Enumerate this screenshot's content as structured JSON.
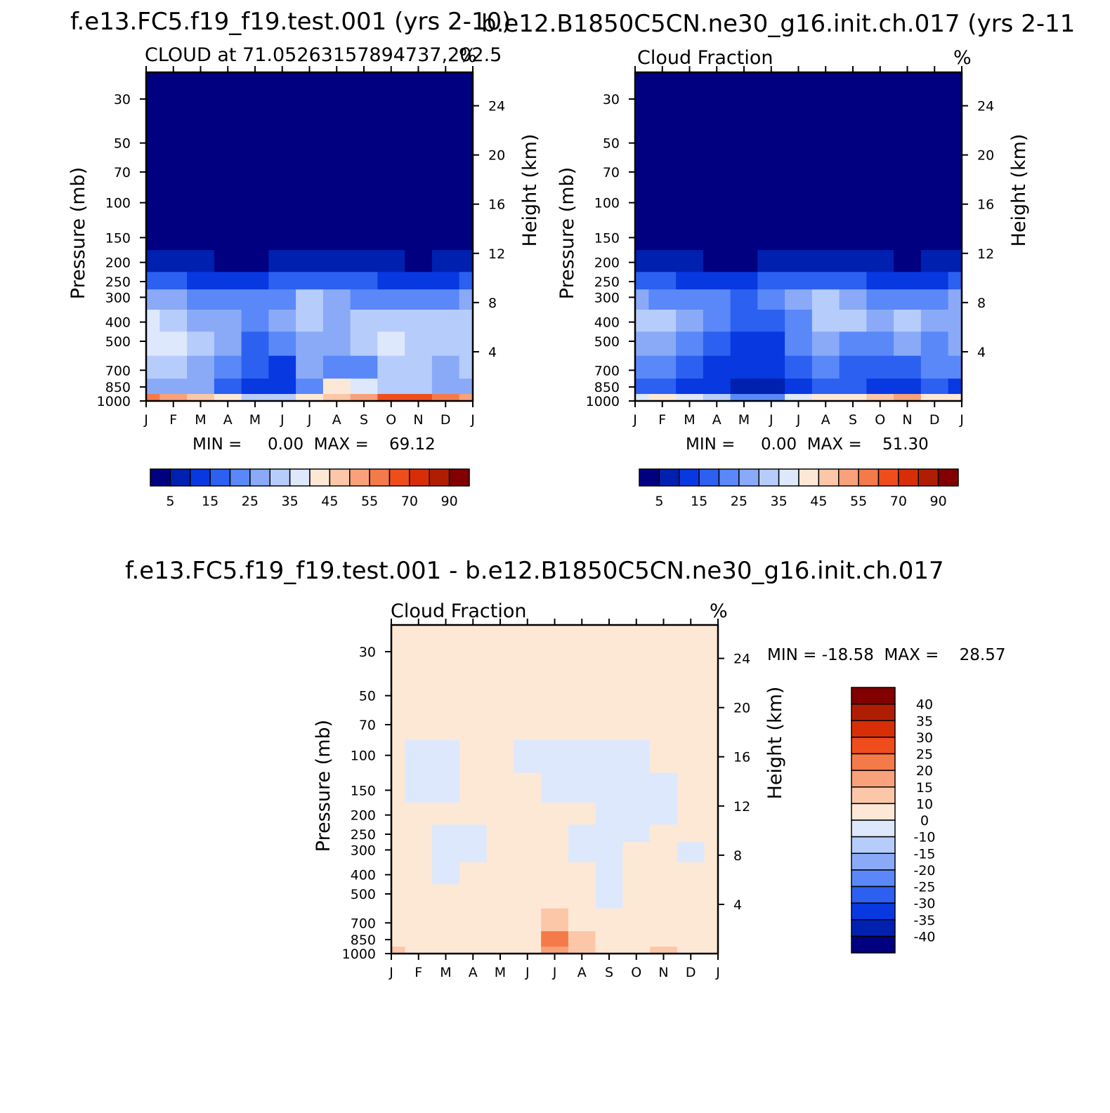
{
  "titles": {
    "left_case": "f.e13.FC5.f19_f19.test.001 (yrs 2-10)",
    "right_case": "b.e12.B1850C5CN.ne30_g16.init.ch.017 (yrs 2-11",
    "diff_case": "f.e13.FC5.f19_f19.test.001 - b.e12.B1850C5CN.ne30_g16.init.ch.017"
  },
  "panels": {
    "p1": {
      "subtitle_left": "CLOUD at 71.05263157894737,202.5",
      "subtitle_right": "%",
      "minmax": "MIN =     0.00  MAX =    69.12"
    },
    "p2": {
      "subtitle_left": "Cloud Fraction",
      "subtitle_right": "%",
      "minmax": "MIN =     0.00  MAX =    51.30"
    },
    "p3": {
      "subtitle_left": "Cloud Fraction",
      "subtitle_right": "%",
      "minmax": "MIN = -18.58  MAX =    28.57"
    }
  },
  "axes": {
    "ylabel_left": "Pressure (mb)",
    "ylabel_right": "Height (km)",
    "pressure_ticks": [
      "30",
      "50",
      "70",
      "100",
      "150",
      "200",
      "250",
      "300",
      "400",
      "500",
      "700",
      "850",
      "1000"
    ],
    "height_ticks": [
      "24",
      "20",
      "16",
      "12",
      "8",
      "4"
    ],
    "month_ticks": [
      "J",
      "F",
      "M",
      "A",
      "M",
      "J",
      "J",
      "A",
      "S",
      "O",
      "N",
      "D",
      "J"
    ]
  },
  "colorbars": {
    "abs": {
      "labels": [
        "5",
        "15",
        "25",
        "35",
        "45",
        "55",
        "70",
        "90"
      ],
      "colors": [
        "#000080",
        "#0020b0",
        "#0838e0",
        "#2c60f0",
        "#5a88f8",
        "#8aaaf8",
        "#b6ccfb",
        "#dde8fd",
        "#fde8d6",
        "#fbc7a8",
        "#f8a17a",
        "#f57a4a",
        "#f04d1c",
        "#d82e08",
        "#b01e02",
        "#820000"
      ]
    },
    "diff": {
      "labels": [
        "40",
        "35",
        "30",
        "25",
        "20",
        "15",
        "10",
        "0",
        "-10",
        "-15",
        "-20",
        "-25",
        "-30",
        "-35",
        "-40"
      ],
      "colors": [
        "#820000",
        "#b01e02",
        "#d82e08",
        "#f04d1c",
        "#f57a4a",
        "#f8a17a",
        "#fbc7a8",
        "#fde8d6",
        "#dde8fd",
        "#b6ccfb",
        "#8aaaf8",
        "#5a88f8",
        "#2c60f0",
        "#0838e0",
        "#0020b0",
        "#000080"
      ]
    }
  },
  "chart_data": [
    {
      "type": "heatmap",
      "title": "CLOUD at 71.05263157894737,202.5",
      "units": "%",
      "x_categories": [
        "J",
        "F",
        "M",
        "A",
        "M",
        "J",
        "J",
        "A",
        "S",
        "O",
        "N",
        "D",
        "J"
      ],
      "y_levels_mb": [
        30,
        50,
        70,
        100,
        150,
        200,
        250,
        300,
        400,
        500,
        700,
        850,
        1000
      ],
      "min": 0.0,
      "max": 69.12,
      "grid": [
        [
          0,
          0,
          0,
          0,
          0,
          0,
          0,
          0,
          0,
          0,
          0,
          0,
          0
        ],
        [
          0,
          0,
          0,
          0,
          0,
          0,
          0,
          0,
          0,
          0,
          0,
          0,
          0
        ],
        [
          0,
          0,
          0,
          0,
          0,
          0,
          0,
          0,
          0,
          0,
          0,
          0,
          0
        ],
        [
          0,
          0,
          0,
          0,
          0,
          0,
          0,
          0,
          0,
          0,
          0,
          0,
          0
        ],
        [
          0,
          0,
          0,
          0,
          0,
          0,
          0,
          0,
          0,
          0,
          0,
          0,
          0
        ],
        [
          8,
          6,
          5,
          3,
          4,
          6,
          8,
          7,
          6,
          5,
          3,
          5,
          7
        ],
        [
          18,
          16,
          14,
          12,
          14,
          16,
          18,
          16,
          15,
          13,
          12,
          14,
          16
        ],
        [
          28,
          26,
          22,
          20,
          22,
          24,
          30,
          26,
          24,
          22,
          20,
          22,
          26
        ],
        [
          36,
          34,
          28,
          26,
          22,
          26,
          32,
          28,
          30,
          34,
          32,
          30,
          32
        ],
        [
          38,
          36,
          30,
          26,
          18,
          20,
          28,
          26,
          30,
          36,
          34,
          30,
          32
        ],
        [
          32,
          30,
          28,
          22,
          16,
          14,
          26,
          24,
          22,
          30,
          32,
          28,
          30
        ],
        [
          28,
          26,
          26,
          18,
          12,
          10,
          22,
          40,
          38,
          34,
          30,
          28,
          28
        ],
        [
          55,
          50,
          48,
          42,
          30,
          32,
          44,
          48,
          52,
          60,
          66,
          58,
          52
        ]
      ]
    },
    {
      "type": "heatmap",
      "title": "Cloud Fraction",
      "units": "%",
      "x_categories": [
        "J",
        "F",
        "M",
        "A",
        "M",
        "J",
        "J",
        "A",
        "S",
        "O",
        "N",
        "D",
        "J"
      ],
      "y_levels_mb": [
        30,
        50,
        70,
        100,
        150,
        200,
        250,
        300,
        400,
        500,
        700,
        850,
        1000
      ],
      "min": 0.0,
      "max": 51.3,
      "grid": [
        [
          0,
          0,
          0,
          0,
          0,
          0,
          0,
          0,
          0,
          0,
          0,
          0,
          0
        ],
        [
          0,
          0,
          0,
          0,
          0,
          0,
          0,
          0,
          0,
          0,
          0,
          0,
          0
        ],
        [
          0,
          0,
          0,
          0,
          0,
          0,
          0,
          0,
          0,
          0,
          0,
          0,
          0
        ],
        [
          0,
          0,
          0,
          0,
          0,
          0,
          0,
          0,
          0,
          0,
          0,
          0,
          0
        ],
        [
          0,
          0,
          0,
          0,
          0,
          0,
          0,
          0,
          0,
          0,
          0,
          0,
          0
        ],
        [
          8,
          6,
          5,
          3,
          4,
          6,
          8,
          7,
          6,
          5,
          3,
          5,
          7
        ],
        [
          18,
          16,
          14,
          12,
          14,
          16,
          18,
          16,
          15,
          13,
          12,
          14,
          16
        ],
        [
          26,
          24,
          22,
          20,
          18,
          20,
          26,
          30,
          28,
          24,
          22,
          22,
          26
        ],
        [
          30,
          32,
          28,
          24,
          16,
          16,
          22,
          34,
          32,
          28,
          30,
          26,
          26
        ],
        [
          26,
          28,
          24,
          18,
          14,
          14,
          20,
          28,
          24,
          24,
          26,
          24,
          26
        ],
        [
          20,
          20,
          18,
          14,
          10,
          10,
          18,
          22,
          18,
          16,
          18,
          20,
          20
        ],
        [
          16,
          16,
          14,
          10,
          6,
          8,
          14,
          18,
          16,
          14,
          14,
          16,
          14
        ],
        [
          38,
          40,
          36,
          30,
          20,
          24,
          36,
          40,
          44,
          46,
          50,
          44,
          40
        ]
      ]
    },
    {
      "type": "heatmap",
      "title": "Cloud Fraction",
      "units": "%",
      "x_categories": [
        "J",
        "F",
        "M",
        "A",
        "M",
        "J",
        "J",
        "A",
        "S",
        "O",
        "N",
        "D",
        "J"
      ],
      "y_levels_mb": [
        30,
        50,
        70,
        100,
        150,
        200,
        250,
        300,
        400,
        500,
        700,
        850,
        1000
      ],
      "min": -18.58,
      "max": 28.57,
      "grid": [
        [
          2,
          2,
          2,
          2,
          2,
          2,
          2,
          2,
          2,
          2,
          2,
          2,
          2
        ],
        [
          2,
          2,
          2,
          2,
          2,
          2,
          2,
          2,
          2,
          2,
          2,
          2,
          2
        ],
        [
          2,
          2,
          2,
          2,
          2,
          2,
          2,
          2,
          2,
          2,
          2,
          2,
          2
        ],
        [
          2,
          -2,
          -2,
          2,
          2,
          -2,
          -2,
          -2,
          -2,
          -2,
          2,
          2,
          2
        ],
        [
          2,
          -2,
          -2,
          2,
          2,
          2,
          -2,
          -2,
          -2,
          -2,
          -2,
          2,
          2
        ],
        [
          2,
          2,
          2,
          2,
          2,
          2,
          2,
          2,
          -2,
          -2,
          -2,
          2,
          2
        ],
        [
          2,
          2,
          -2,
          -2,
          2,
          2,
          2,
          -2,
          -2,
          -2,
          2,
          2,
          2
        ],
        [
          2,
          2,
          -2,
          -2,
          2,
          2,
          2,
          -2,
          -2,
          2,
          2,
          -2,
          2
        ],
        [
          2,
          2,
          -2,
          2,
          2,
          2,
          6,
          2,
          -2,
          2,
          2,
          2,
          2
        ],
        [
          2,
          6,
          2,
          2,
          2,
          2,
          8,
          2,
          -2,
          2,
          2,
          2,
          2
        ],
        [
          2,
          2,
          2,
          2,
          2,
          2,
          10,
          4,
          2,
          2,
          8,
          4,
          2
        ],
        [
          6,
          2,
          6,
          2,
          2,
          2,
          22,
          14,
          6,
          2,
          6,
          2,
          6
        ],
        [
          12,
          2,
          4,
          2,
          2,
          2,
          18,
          12,
          6,
          4,
          14,
          2,
          8
        ]
      ]
    }
  ]
}
